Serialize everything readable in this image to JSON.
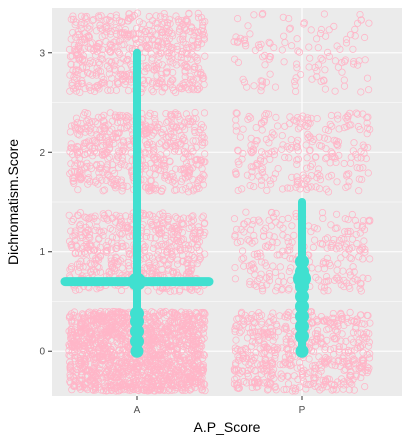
{
  "chart_data": {
    "type": "scatter",
    "xlabel": "A.P_Score",
    "ylabel": "Dichromatism.Score",
    "categories": [
      "A",
      "P"
    ],
    "ylim": [
      -0.45,
      3.45
    ],
    "yticks": [
      0,
      1,
      2,
      3
    ],
    "grid": true,
    "colors": {
      "panel": "#ebebeb",
      "grid": "#ffffff",
      "points": "#ffb6c8",
      "summary": "#40e0d0"
    },
    "series": [
      {
        "name": "",
        "jitter_clusters": [
          {
            "x": "A",
            "y": 0,
            "density": "very high"
          },
          {
            "x": "A",
            "y": 1,
            "density": "high"
          },
          {
            "x": "A",
            "y": 2,
            "density": "high"
          },
          {
            "x": "A",
            "y": 3,
            "density": "high"
          },
          {
            "x": "P",
            "y": 0,
            "density": "high"
          },
          {
            "x": "P",
            "y": 1,
            "density": "medium"
          },
          {
            "x": "P",
            "y": 2,
            "density": "medium"
          },
          {
            "x": "P",
            "y": 3,
            "density": "low"
          }
        ]
      }
    ],
    "summary": [
      {
        "x": "A",
        "mean": 0.7,
        "ymin": 0,
        "ymax": 3,
        "extra_points": [
          0.1,
          0.2,
          0.3,
          0.38
        ]
      },
      {
        "x": "P",
        "mean": 0.73,
        "ymin": 0,
        "ymax": 1.5,
        "extra_points": [
          0.15,
          0.25,
          0.35,
          0.45,
          0.55,
          0.65,
          0.8,
          0.9
        ]
      }
    ]
  }
}
